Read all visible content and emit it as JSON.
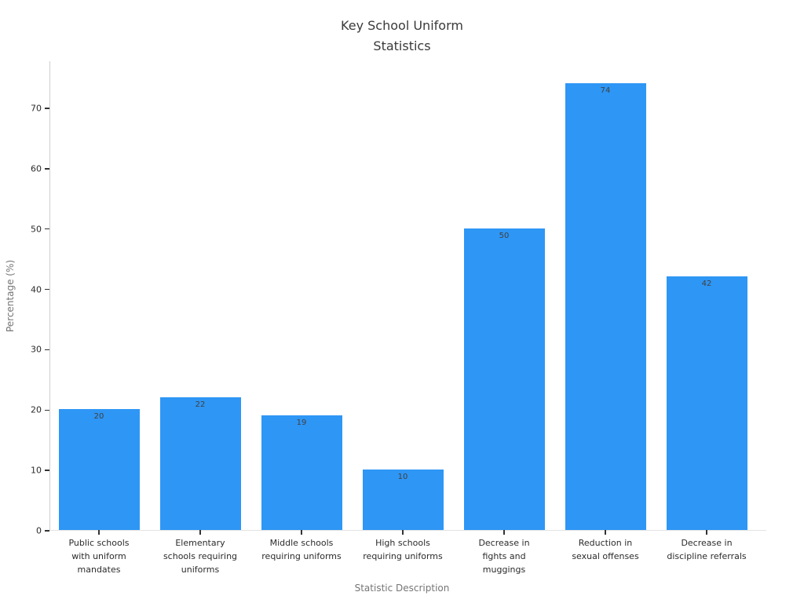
{
  "title_display": "Key School Uniform\nStatistics",
  "chart_data": {
    "type": "bar",
    "title": "Key School Uniform Statistics",
    "xlabel": "Statistic Description",
    "ylabel": "Percentage (%)",
    "categories": [
      "Public schools with uniform mandates",
      "Elementary schools requiring uniforms",
      "Middle schools requiring uniforms",
      "High schools requiring uniforms",
      "Decrease in fights and muggings",
      "Reduction in sexual offenses",
      "Decrease in discipline referrals"
    ],
    "category_display_lines": [
      "Public schools\nwith uniform\nmandates",
      "Elementary\nschools requiring\nuniforms",
      "Middle schools\nrequiring uniforms",
      "High schools\nrequiring uniforms",
      "Decrease in\nfights and\nmuggings",
      "Reduction in\nsexual offenses",
      "Decrease in\ndiscipline referrals"
    ],
    "values": [
      20,
      22,
      19,
      10,
      50,
      74,
      42
    ],
    "value_labels": [
      "20",
      "22",
      "19",
      "10",
      "50",
      "74",
      "42"
    ],
    "yticks": [
      0,
      10,
      20,
      30,
      40,
      50,
      60,
      70
    ],
    "ylim": [
      0,
      77.8
    ],
    "grid": false,
    "legend": "none",
    "bar_color": "#2e96f5",
    "value_label_color": "#404040"
  }
}
